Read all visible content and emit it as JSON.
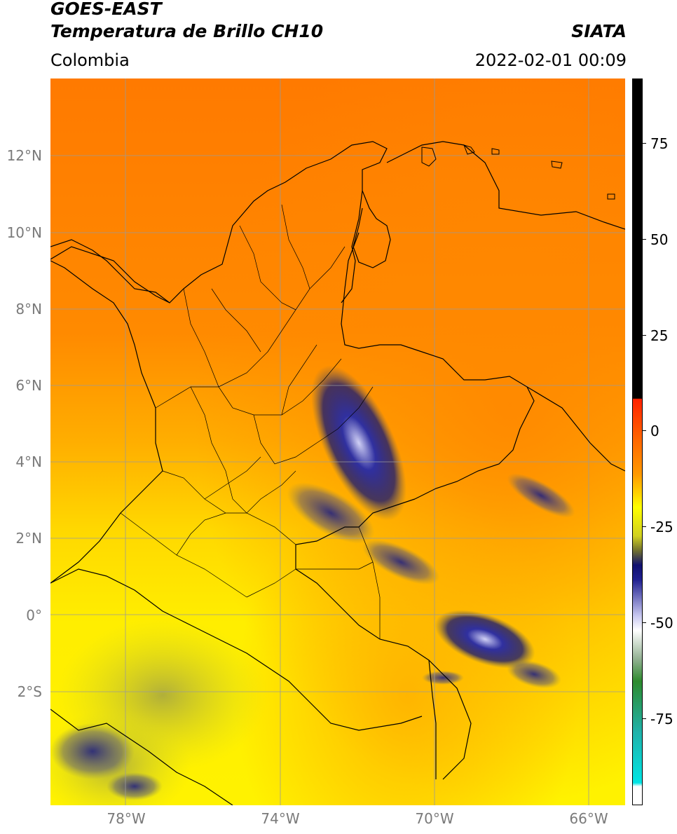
{
  "header": {
    "satellite": "GOES-EAST",
    "product": "Temperatura de Brillo CH10",
    "brand": "SIATA",
    "region": "Colombia",
    "datetime": "2022-02-01 00:09"
  },
  "map": {
    "lat_labels": [
      "12°N",
      "10°N",
      "8°N",
      "6°N",
      "4°N",
      "2°N",
      "0°",
      "2°S"
    ],
    "lon_labels": [
      "78°W",
      "74°W",
      "70°W",
      "66°W"
    ],
    "colors": {
      "warm_orange": "#ff7f00",
      "orange": "#ff9f00",
      "yellow": "#ffee00",
      "olive": "#b8b830",
      "deep_blue": "#1a1a80",
      "light_blue": "#c8c8f0",
      "border": "#000000"
    }
  },
  "colorbar": {
    "ticks": [
      "75",
      "50",
      "25",
      "0",
      "-25",
      "-50",
      "-75"
    ],
    "colors": {
      "black": "#000000",
      "red": "#ff2200",
      "orange": "#ff8c00",
      "yellow": "#ffff00",
      "olive": "#707030",
      "navy": "#101070",
      "white": "#ffffff",
      "green": "#2e8b2e",
      "teal": "#20b2aa",
      "cyan": "#00e5e5"
    }
  }
}
